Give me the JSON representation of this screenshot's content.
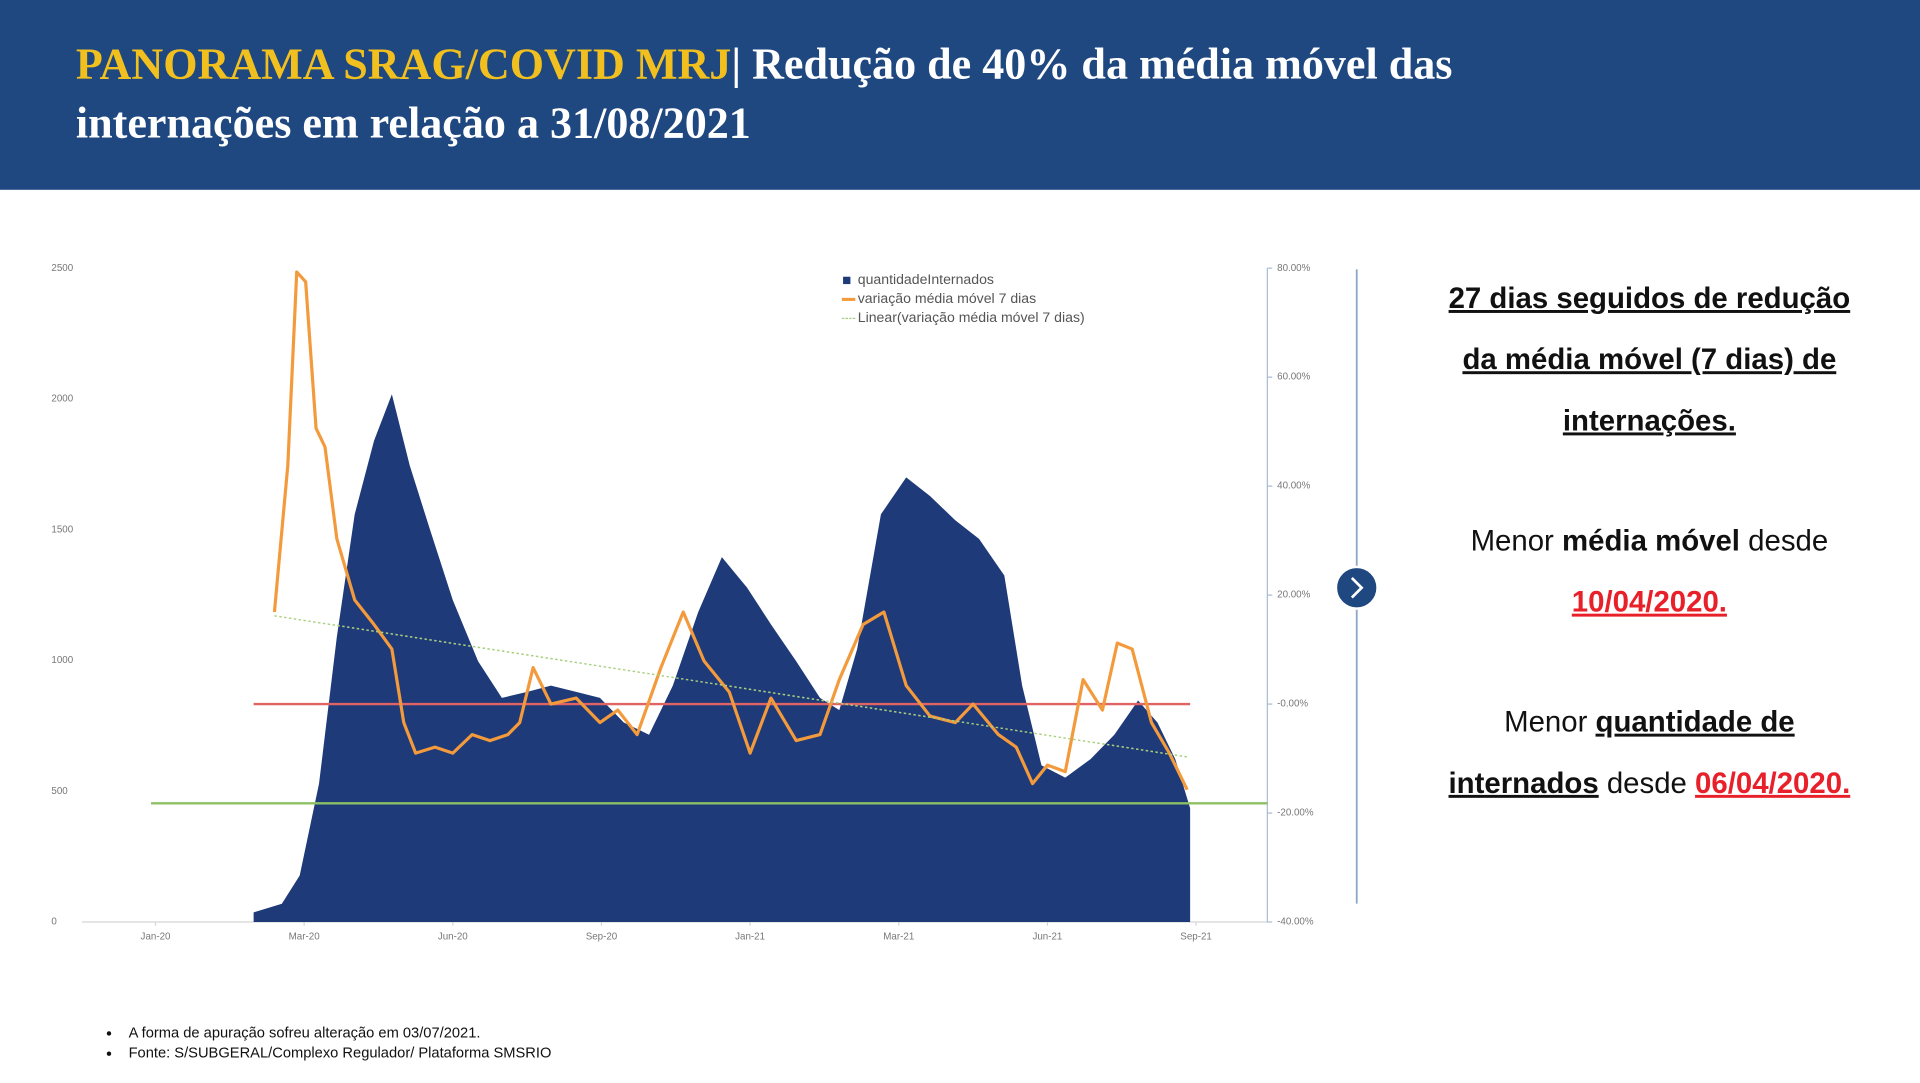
{
  "header": {
    "title_lines": [
      [
        {
          "text": "PANORAMA SRAG/COVID MRJ",
          "color": "#f2c01e"
        },
        {
          "text": "| Redução de 40% da média móvel das"
        }
      ],
      [
        {
          "text": "internações em relação a 31/08/2021"
        }
      ]
    ]
  },
  "chart_data": {
    "type": "combo",
    "legend": "upper right",
    "xlim": [
      -0.5,
      7.5
    ],
    "xticks": [
      {
        "value": 0,
        "label": "Jan-20"
      },
      {
        "value": 1,
        "label": "Mar-20"
      },
      {
        "value": 2,
        "label": "Jun-20"
      },
      {
        "value": 3,
        "label": "Sep-20"
      },
      {
        "value": 4,
        "label": "Jan-21"
      },
      {
        "value": 5,
        "label": "Mar-21"
      },
      {
        "value": 6,
        "label": "Jun-21"
      },
      {
        "value": 7,
        "label": "Sep-21"
      }
    ],
    "ylim": [
      0,
      2500
    ],
    "yticks": [
      0,
      500,
      1000,
      1500,
      2000,
      2500
    ],
    "y2lim": [
      -40,
      80
    ],
    "y2ticks": [
      {
        "value": 80,
        "label": "80.00%"
      },
      {
        "value": 60,
        "label": "60.00%"
      },
      {
        "value": 40,
        "label": "40.00%"
      },
      {
        "value": 20,
        "label": "20.00%"
      },
      {
        "value": 0,
        "label": "-0.00%"
      },
      {
        "value": -20,
        "label": "-20.00%"
      },
      {
        "value": -40,
        "label": "-40.00%"
      }
    ],
    "series": [
      {
        "name": "quantidadeInternados",
        "type": "area",
        "color": "#1f3a78",
        "x": [
          0.66,
          0.85,
          0.97,
          1.1,
          1.22,
          1.34,
          1.47,
          1.59,
          1.71,
          1.84,
          2.0,
          2.17,
          2.33,
          2.5,
          2.66,
          2.83,
          2.99,
          3.15,
          3.32,
          3.48,
          3.65,
          3.81,
          3.98,
          4.14,
          4.31,
          4.47,
          4.6,
          4.72,
          4.88,
          5.05,
          5.21,
          5.38,
          5.54,
          5.71,
          5.83,
          5.96,
          6.12,
          6.29,
          6.45,
          6.61,
          6.74,
          6.86,
          6.96
        ],
        "values": [
          37,
          70,
          178,
          529,
          1091,
          1559,
          1840,
          2018,
          1746,
          1512,
          1231,
          997,
          857,
          880,
          904,
          880,
          857,
          763,
          716,
          904,
          1184,
          1395,
          1278,
          1138,
          997,
          857,
          810,
          1044,
          1559,
          1700,
          1629,
          1536,
          1465,
          1325,
          904,
          599,
          552,
          623,
          716,
          847,
          763,
          623,
          435
        ]
      },
      {
        "name": "variação média móvel 7 dias",
        "type": "line",
        "axis": "y2",
        "color": "#f39a3c",
        "x": [
          0.8,
          0.89,
          0.95,
          1.01,
          1.08,
          1.14,
          1.22,
          1.34,
          1.47,
          1.59,
          1.67,
          1.75,
          1.88,
          2.0,
          2.13,
          2.25,
          2.37,
          2.45,
          2.54,
          2.66,
          2.83,
          2.99,
          3.11,
          3.24,
          3.4,
          3.55,
          3.69,
          3.86,
          4.0,
          4.14,
          4.31,
          4.47,
          4.6,
          4.76,
          4.9,
          5.05,
          5.21,
          5.38,
          5.5,
          5.67,
          5.79,
          5.9,
          6.0,
          6.12,
          6.24,
          6.37,
          6.47,
          6.57,
          6.7,
          6.82,
          6.94
        ],
        "values": [
          16.9,
          43.8,
          79.3,
          77.5,
          50.6,
          47.2,
          30.3,
          19.1,
          14.6,
          10.1,
          -3.4,
          -9.0,
          -7.9,
          -9.0,
          -5.6,
          -6.7,
          -5.6,
          -3.4,
          6.7,
          0,
          1.1,
          -3.4,
          -1.1,
          -5.6,
          6.7,
          16.9,
          7.9,
          2.2,
          -9.0,
          1.1,
          -6.7,
          -5.6,
          4.5,
          14.6,
          16.9,
          3.4,
          -2.2,
          -3.4,
          0,
          -5.6,
          -7.9,
          -14.6,
          -11.2,
          -12.4,
          4.5,
          -1.1,
          11.2,
          10.1,
          -3.4,
          -9.0,
          -15.7
        ]
      },
      {
        "name": "Linear(variação média móvel 7 dias)",
        "type": "trend",
        "axis": "y2",
        "color": "#a9cf7e",
        "x": [
          0.8,
          6.94
        ],
        "values": [
          16.2,
          -9.7
        ]
      }
    ],
    "hlines": [
      {
        "value": 0,
        "axis": "y2",
        "color": "#e06464",
        "x": [
          0.66,
          6.96
        ]
      },
      {
        "value": 454,
        "color": "#8cc063",
        "x": [
          -0.03,
          7.48
        ]
      }
    ]
  },
  "panel": {
    "paragraphs": [
      [
        [
          {
            "text": "27 dias seguidos de redução",
            "bold": true,
            "underline": true
          }
        ],
        [
          {
            "text": "da média móvel (7 dias) de",
            "bold": true,
            "underline": true
          }
        ],
        [
          {
            "text": "internações.",
            "bold": true,
            "underline": true
          }
        ]
      ],
      [
        [
          {
            "text": "Menor "
          },
          {
            "text": "média móvel",
            "bold": true
          },
          {
            "text": " desde"
          }
        ],
        [
          {
            "text": "10/04/2020.",
            "bold": true,
            "underline": true,
            "color": "#e8202a"
          }
        ]
      ],
      [
        [
          {
            "text": "Menor "
          },
          {
            "text": "quantidade de",
            "bold": true,
            "underline": true
          }
        ],
        [
          {
            "text": "internados",
            "bold": true,
            "underline": true
          },
          {
            "text": " desde "
          },
          {
            "text": "06/04/2020.",
            "bold": true,
            "underline": true,
            "color": "#e8202a"
          }
        ]
      ]
    ]
  },
  "notes": [
    "A forma de apuração sofreu alteração em 03/07/2021.",
    "Fonte: S/SUBGERAL/Complexo Regulador/ Plataforma SMSRIO"
  ]
}
